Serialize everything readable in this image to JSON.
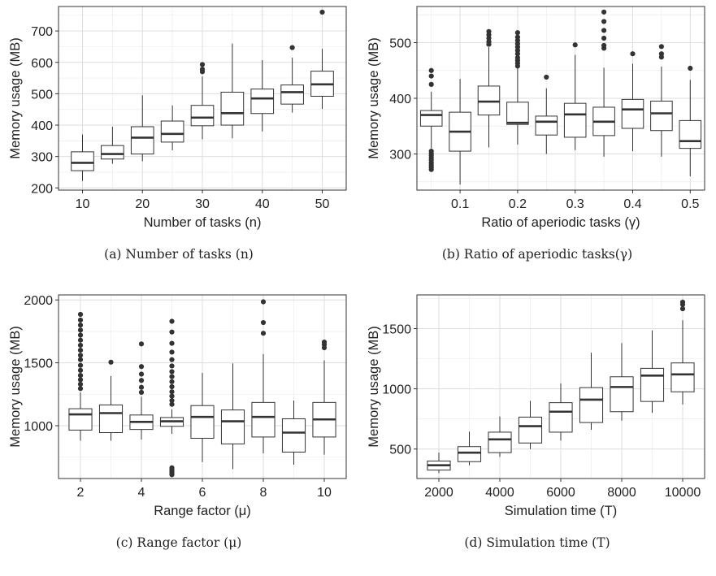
{
  "chart_data": [
    {
      "type": "boxplot",
      "caption": "(a) Number of tasks (n)",
      "xlabel": "Number of tasks (n)",
      "ylabel": "Memory usage (MB)",
      "xlim": [
        6,
        54
      ],
      "ylim": [
        193,
        778
      ],
      "xticks": [
        10,
        20,
        30,
        40,
        50
      ],
      "yticks": [
        200,
        300,
        400,
        500,
        600,
        700
      ],
      "grid": true,
      "boxes": [
        {
          "x": 10,
          "lw": 222,
          "q1": 255,
          "med": 280,
          "q3": 315,
          "uw": 370,
          "outliers": []
        },
        {
          "x": 15,
          "lw": 277,
          "q1": 292,
          "med": 308,
          "q3": 335,
          "uw": 395,
          "outliers": []
        },
        {
          "x": 20,
          "lw": 285,
          "q1": 308,
          "med": 360,
          "q3": 395,
          "uw": 495,
          "outliers": []
        },
        {
          "x": 25,
          "lw": 320,
          "q1": 346,
          "med": 372,
          "q3": 413,
          "uw": 463,
          "outliers": []
        },
        {
          "x": 30,
          "lw": 355,
          "q1": 398,
          "med": 424,
          "q3": 463,
          "uw": 555,
          "outliers": [
            570,
            578,
            593
          ]
        },
        {
          "x": 35,
          "lw": 358,
          "q1": 400,
          "med": 438,
          "q3": 505,
          "uw": 660,
          "outliers": []
        },
        {
          "x": 40,
          "lw": 380,
          "q1": 437,
          "med": 485,
          "q3": 515,
          "uw": 607,
          "outliers": []
        },
        {
          "x": 45,
          "lw": 440,
          "q1": 467,
          "med": 505,
          "q3": 528,
          "uw": 615,
          "outliers": [
            647
          ]
        },
        {
          "x": 50,
          "lw": 452,
          "q1": 492,
          "med": 530,
          "q3": 572,
          "uw": 643,
          "outliers": [
            760
          ]
        }
      ]
    },
    {
      "type": "boxplot",
      "caption": "(b) Ratio of aperiodic tasks(γ)",
      "xlabel": "Ratio of aperiodic tasks (γ)",
      "ylabel": "Memory usage (MB)",
      "xlim": [
        0.025,
        0.525
      ],
      "ylim": [
        235,
        565
      ],
      "xticks": [
        0.1,
        0.2,
        0.3,
        0.4,
        0.5
      ],
      "yticks": [
        300,
        400,
        500
      ],
      "grid": true,
      "boxes": [
        {
          "x": 0.05,
          "lw": 310,
          "q1": 350,
          "med": 370,
          "q3": 378,
          "uw": 412,
          "outliers": [
            272,
            276,
            280,
            284,
            289,
            293,
            297,
            301,
            305,
            425,
            440,
            450
          ]
        },
        {
          "x": 0.1,
          "lw": 245,
          "q1": 305,
          "med": 340,
          "q3": 375,
          "uw": 435,
          "outliers": []
        },
        {
          "x": 0.15,
          "lw": 312,
          "q1": 370,
          "med": 394,
          "q3": 422,
          "uw": 492,
          "outliers": [
            497,
            502,
            508,
            514,
            520
          ]
        },
        {
          "x": 0.2,
          "lw": 317,
          "q1": 353,
          "med": 356,
          "q3": 393,
          "uw": 455,
          "outliers": [
            458,
            463,
            468,
            473,
            480,
            486,
            492,
            498,
            504,
            510,
            518
          ]
        },
        {
          "x": 0.25,
          "lw": 300,
          "q1": 334,
          "med": 358,
          "q3": 368,
          "uw": 418,
          "outliers": [
            438
          ]
        },
        {
          "x": 0.3,
          "lw": 307,
          "q1": 330,
          "med": 371,
          "q3": 391,
          "uw": 478,
          "outliers": [
            496
          ]
        },
        {
          "x": 0.35,
          "lw": 295,
          "q1": 333,
          "med": 358,
          "q3": 384,
          "uw": 455,
          "outliers": [
            490,
            495,
            508,
            522,
            538,
            555
          ]
        },
        {
          "x": 0.4,
          "lw": 305,
          "q1": 346,
          "med": 380,
          "q3": 398,
          "uw": 462,
          "outliers": [
            480
          ]
        },
        {
          "x": 0.45,
          "lw": 295,
          "q1": 342,
          "med": 373,
          "q3": 395,
          "uw": 457,
          "outliers": [
            474,
            480,
            493
          ]
        },
        {
          "x": 0.5,
          "lw": 260,
          "q1": 310,
          "med": 323,
          "q3": 360,
          "uw": 433,
          "outliers": [
            454
          ]
        }
      ]
    },
    {
      "type": "boxplot",
      "caption": "(c) Range factor (μ)",
      "xlabel": "Range factor (μ)",
      "ylabel": "Memory usage (MB)",
      "xlim": [
        1.28,
        10.72
      ],
      "ylim": [
        580,
        2040
      ],
      "xticks": [
        2,
        4,
        6,
        8,
        10
      ],
      "yticks": [
        1000,
        1500,
        2000
      ],
      "grid": true,
      "boxes": [
        {
          "x": 2,
          "lw": 880,
          "q1": 965,
          "med": 1090,
          "q3": 1135,
          "uw": 1265,
          "outliers": [
            1295,
            1330,
            1365,
            1400,
            1440,
            1480,
            1525,
            1560,
            1600,
            1640,
            1680,
            1720,
            1760,
            1800,
            1840,
            1885
          ]
        },
        {
          "x": 3,
          "lw": 880,
          "q1": 945,
          "med": 1100,
          "q3": 1165,
          "uw": 1395,
          "outliers": [
            1505
          ]
        },
        {
          "x": 4,
          "lw": 890,
          "q1": 970,
          "med": 1030,
          "q3": 1085,
          "uw": 1230,
          "outliers": [
            1265,
            1305,
            1360,
            1410,
            1470,
            1650
          ]
        },
        {
          "x": 5,
          "lw": 935,
          "q1": 995,
          "med": 1035,
          "q3": 1065,
          "uw": 1130,
          "outliers": [
            610,
            620,
            630,
            640,
            652,
            665,
            1170,
            1200,
            1235,
            1270,
            1310,
            1350,
            1390,
            1430,
            1475,
            1525,
            1585,
            1655,
            1745,
            1830
          ]
        },
        {
          "x": 6,
          "lw": 710,
          "q1": 900,
          "med": 1070,
          "q3": 1160,
          "uw": 1420,
          "outliers": []
        },
        {
          "x": 7,
          "lw": 655,
          "q1": 855,
          "med": 1035,
          "q3": 1125,
          "uw": 1495,
          "outliers": []
        },
        {
          "x": 8,
          "lw": 780,
          "q1": 910,
          "med": 1070,
          "q3": 1185,
          "uw": 1570,
          "outliers": [
            1735,
            1820,
            1985
          ]
        },
        {
          "x": 9,
          "lw": 690,
          "q1": 790,
          "med": 945,
          "q3": 1055,
          "uw": 1200,
          "outliers": []
        },
        {
          "x": 10,
          "lw": 770,
          "q1": 910,
          "med": 1050,
          "q3": 1185,
          "uw": 1520,
          "outliers": [
            1620,
            1645,
            1665
          ]
        }
      ]
    },
    {
      "type": "boxplot",
      "caption": "(d) Simulation time (T)",
      "xlabel": "Simulation time (T)",
      "ylabel": "Memory usage (MB)",
      "xlim": [
        1280,
        10720
      ],
      "ylim": [
        255,
        1780
      ],
      "xticks": [
        2000,
        4000,
        6000,
        8000,
        10000
      ],
      "yticks": [
        500,
        1000,
        1500
      ],
      "grid": true,
      "boxes": [
        {
          "x": 2000,
          "lw": 300,
          "q1": 325,
          "med": 365,
          "q3": 400,
          "uw": 470,
          "outliers": []
        },
        {
          "x": 3000,
          "lw": 365,
          "q1": 395,
          "med": 470,
          "q3": 520,
          "uw": 645,
          "outliers": []
        },
        {
          "x": 4000,
          "lw": 435,
          "q1": 470,
          "med": 580,
          "q3": 640,
          "uw": 770,
          "outliers": []
        },
        {
          "x": 5000,
          "lw": 500,
          "q1": 550,
          "med": 690,
          "q3": 765,
          "uw": 900,
          "outliers": []
        },
        {
          "x": 6000,
          "lw": 570,
          "q1": 640,
          "med": 810,
          "q3": 885,
          "uw": 1045,
          "outliers": []
        },
        {
          "x": 7000,
          "lw": 660,
          "q1": 720,
          "med": 910,
          "q3": 1010,
          "uw": 1300,
          "outliers": []
        },
        {
          "x": 8000,
          "lw": 735,
          "q1": 810,
          "med": 1015,
          "q3": 1100,
          "uw": 1380,
          "outliers": []
        },
        {
          "x": 9000,
          "lw": 800,
          "q1": 895,
          "med": 1110,
          "q3": 1170,
          "uw": 1485,
          "outliers": []
        },
        {
          "x": 10000,
          "lw": 870,
          "q1": 975,
          "med": 1120,
          "q3": 1215,
          "uw": 1570,
          "outliers": [
            1665,
            1700,
            1720
          ]
        }
      ]
    }
  ]
}
